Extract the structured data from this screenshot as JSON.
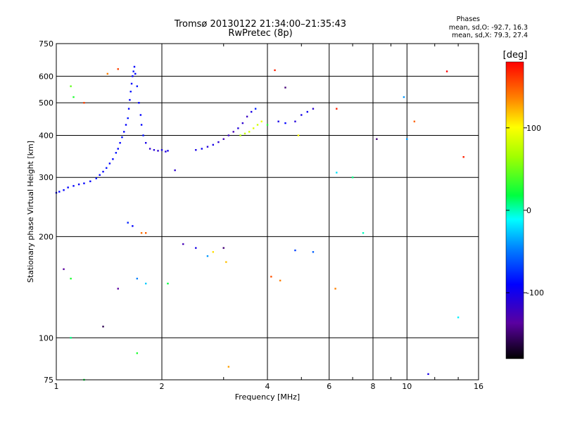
{
  "header": {
    "title": "Tromsø 20130122 21:34:00–21:35:43",
    "subtitle": "RwPretec (8p)",
    "stats_title": "Phases",
    "stats_o": "mean, sd,O:  -92.7, 16.3",
    "stats_x": "mean, sd,X:  79.3, 27.4"
  },
  "colorbar": {
    "label": "[deg]",
    "ticks": [
      "100",
      "0",
      "-100"
    ],
    "tick_values": [
      100,
      0,
      -100
    ],
    "range": [
      -180,
      180
    ]
  },
  "chart_data": {
    "type": "scatter",
    "xlabel": "Frequency [MHz]",
    "ylabel": "Stationary phase Virtual Height [km]",
    "x_scale": "log",
    "y_scale": "log",
    "xlim": [
      1,
      16
    ],
    "ylim": [
      75,
      750
    ],
    "x_ticks": [
      1,
      2,
      4,
      6,
      8,
      10,
      16
    ],
    "x_tick_labels": [
      "1",
      "2",
      "4",
      "6",
      "8",
      "10",
      "16"
    ],
    "y_ticks": [
      75,
      100,
      200,
      300,
      400,
      500,
      600,
      750
    ],
    "y_tick_labels": [
      "75",
      "100",
      "200",
      "300",
      "400",
      "500",
      "600",
      "750"
    ],
    "grid": true,
    "color_variable": "phase [deg]",
    "points": [
      [
        1.0,
        270,
        -100
      ],
      [
        1.02,
        272,
        -100
      ],
      [
        1.05,
        275,
        -100
      ],
      [
        1.08,
        280,
        -100
      ],
      [
        1.12,
        283,
        -100
      ],
      [
        1.16,
        286,
        -105
      ],
      [
        1.2,
        288,
        -100
      ],
      [
        1.25,
        292,
        -100
      ],
      [
        1.3,
        298,
        -95
      ],
      [
        1.33,
        305,
        -100
      ],
      [
        1.36,
        312,
        -100
      ],
      [
        1.39,
        320,
        -95
      ],
      [
        1.42,
        330,
        -100
      ],
      [
        1.45,
        340,
        -100
      ],
      [
        1.48,
        355,
        -95
      ],
      [
        1.5,
        365,
        -100
      ],
      [
        1.52,
        380,
        -100
      ],
      [
        1.54,
        395,
        -95
      ],
      [
        1.56,
        410,
        -100
      ],
      [
        1.58,
        430,
        -100
      ],
      [
        1.6,
        450,
        -95
      ],
      [
        1.61,
        480,
        -100
      ],
      [
        1.62,
        510,
        -100
      ],
      [
        1.63,
        540,
        -95
      ],
      [
        1.64,
        570,
        -100
      ],
      [
        1.65,
        600,
        -100
      ],
      [
        1.66,
        620,
        -95
      ],
      [
        1.67,
        640,
        -100
      ],
      [
        1.68,
        610,
        -100
      ],
      [
        1.7,
        560,
        -95
      ],
      [
        1.72,
        500,
        -100
      ],
      [
        1.74,
        460,
        -100
      ],
      [
        1.75,
        430,
        -100
      ],
      [
        1.77,
        400,
        -95
      ],
      [
        1.8,
        380,
        -110
      ],
      [
        1.85,
        365,
        -120
      ],
      [
        1.9,
        362,
        -115
      ],
      [
        1.95,
        360,
        -120
      ],
      [
        2.0,
        362,
        -110
      ],
      [
        2.05,
        358,
        -115
      ],
      [
        2.08,
        360,
        -110
      ],
      [
        2.5,
        362,
        -110
      ],
      [
        2.6,
        365,
        -105
      ],
      [
        2.7,
        370,
        -115
      ],
      [
        2.8,
        375,
        -110
      ],
      [
        2.9,
        382,
        -120
      ],
      [
        3.0,
        390,
        -130
      ],
      [
        3.1,
        400,
        -125
      ],
      [
        3.2,
        410,
        -130
      ],
      [
        3.3,
        420,
        -115
      ],
      [
        3.4,
        435,
        -120
      ],
      [
        3.5,
        455,
        -125
      ],
      [
        3.6,
        470,
        -110
      ],
      [
        3.7,
        480,
        -90
      ],
      [
        3.35,
        400,
        75
      ],
      [
        3.45,
        405,
        80
      ],
      [
        3.55,
        410,
        85
      ],
      [
        3.65,
        420,
        90
      ],
      [
        3.75,
        430,
        85
      ],
      [
        3.85,
        440,
        95
      ],
      [
        4.0,
        430,
        30
      ],
      [
        4.3,
        440,
        -110
      ],
      [
        4.5,
        435,
        -100
      ],
      [
        4.8,
        440,
        -115
      ],
      [
        5.0,
        460,
        -110
      ],
      [
        5.2,
        470,
        -105
      ],
      [
        5.4,
        480,
        -120
      ],
      [
        1.6,
        220,
        -90
      ],
      [
        1.65,
        215,
        -100
      ],
      [
        1.75,
        205,
        145
      ],
      [
        1.8,
        205,
        150
      ],
      [
        1.7,
        150,
        -60
      ],
      [
        1.8,
        145,
        -30
      ],
      [
        2.3,
        190,
        -130
      ],
      [
        2.5,
        185,
        -110
      ],
      [
        2.7,
        175,
        -50
      ],
      [
        3.0,
        185,
        -150
      ],
      [
        2.8,
        180,
        110
      ],
      [
        3.05,
        168,
        120
      ],
      [
        3.1,
        82,
        130
      ],
      [
        4.1,
        152,
        155
      ],
      [
        4.35,
        148,
        140
      ],
      [
        4.8,
        182,
        -80
      ],
      [
        5.4,
        180,
        -70
      ],
      [
        6.3,
        480,
        170
      ],
      [
        6.3,
        310,
        -20
      ],
      [
        7.0,
        300,
        10
      ],
      [
        7.5,
        205,
        0
      ],
      [
        8.2,
        390,
        -150
      ],
      [
        9.8,
        520,
        -50
      ],
      [
        10.5,
        440,
        150
      ],
      [
        11.5,
        78,
        -110
      ],
      [
        13.0,
        620,
        180
      ],
      [
        14.5,
        345,
        170
      ],
      [
        14.0,
        115,
        -15
      ],
      [
        1.1,
        560,
        50
      ],
      [
        1.12,
        520,
        30
      ],
      [
        1.2,
        500,
        160
      ],
      [
        1.4,
        610,
        140
      ],
      [
        1.5,
        630,
        160
      ],
      [
        1.36,
        108,
        -160
      ],
      [
        1.2,
        75,
        20
      ],
      [
        1.1,
        100,
        10
      ],
      [
        1.05,
        160,
        -140
      ],
      [
        1.1,
        150,
        30
      ],
      [
        1.5,
        140,
        -140
      ],
      [
        1.7,
        90,
        30
      ],
      [
        2.08,
        145,
        20
      ],
      [
        2.18,
        315,
        -120
      ],
      [
        4.2,
        625,
        170
      ],
      [
        4.5,
        555,
        -150
      ],
      [
        4.9,
        400,
        100
      ],
      [
        6.25,
        140,
        140
      ],
      [
        10.0,
        390,
        -50
      ]
    ]
  }
}
